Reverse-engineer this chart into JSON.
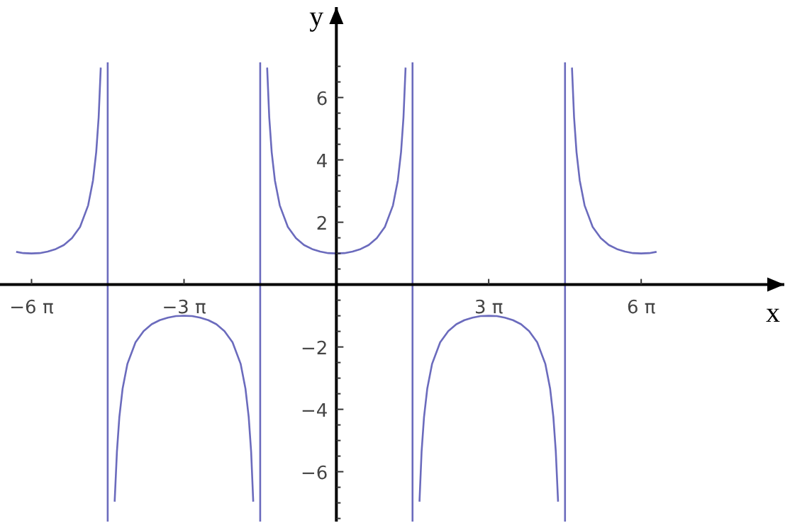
{
  "chart_data": {
    "type": "line",
    "xlabel": "x",
    "ylabel": "y",
    "xlim": [
      -20.8,
      27.7
    ],
    "ylim": [
      -7.6,
      8.9
    ],
    "xticks": [
      {
        "value": -18.85,
        "label": "−6 π"
      },
      {
        "value": -9.42,
        "label": "−3 π"
      },
      {
        "value": 9.42,
        "label": "3 π"
      },
      {
        "value": 18.85,
        "label": "6 π"
      }
    ],
    "yticks": [
      {
        "value": -7.5,
        "label": null
      },
      {
        "value": -7,
        "label": null
      },
      {
        "value": -6.5,
        "label": null
      },
      {
        "value": -6,
        "label": "−6"
      },
      {
        "value": -5.5,
        "label": null
      },
      {
        "value": -5,
        "label": null
      },
      {
        "value": -4.5,
        "label": null
      },
      {
        "value": -4,
        "label": "−4"
      },
      {
        "value": -3.5,
        "label": null
      },
      {
        "value": -3,
        "label": null
      },
      {
        "value": -2.5,
        "label": null
      },
      {
        "value": -2,
        "label": "−2"
      },
      {
        "value": -1.5,
        "label": null
      },
      {
        "value": -1,
        "label": null
      },
      {
        "value": -0.5,
        "label": null
      },
      {
        "value": 0.5,
        "label": null
      },
      {
        "value": 1,
        "label": null
      },
      {
        "value": 1.5,
        "label": null
      },
      {
        "value": 2,
        "label": "2"
      },
      {
        "value": 2.5,
        "label": null
      },
      {
        "value": 3,
        "label": null
      },
      {
        "value": 3.5,
        "label": null
      },
      {
        "value": 4,
        "label": "4"
      },
      {
        "value": 4.5,
        "label": null
      },
      {
        "value": 5,
        "label": null
      },
      {
        "value": 5.5,
        "label": null
      },
      {
        "value": 6,
        "label": "6"
      },
      {
        "value": 6.5,
        "label": null
      },
      {
        "value": 7,
        "label": null
      }
    ],
    "grid": false,
    "marker": "none",
    "line_style": "solid",
    "ref_lines": [
      {
        "axis": "x",
        "value": -14.14,
        "color": "#6b6bbd"
      },
      {
        "axis": "x",
        "value": -4.71,
        "color": "#6b6bbd"
      },
      {
        "axis": "x",
        "value": 4.71,
        "color": "#6b6bbd"
      },
      {
        "axis": "x",
        "value": 14.14,
        "color": "#6b6bbd"
      }
    ],
    "series": [
      {
        "color": "#6b6bbd",
        "x": [
          -19.8,
          -19.35,
          -18.85,
          -18.35,
          -17.85,
          -17.35,
          -16.85,
          -16.35,
          -15.85,
          -15.35,
          -15.05,
          -14.85,
          -14.7,
          -14.57,
          null,
          -13.71,
          -13.57,
          -13.42,
          -13.22,
          -12.92,
          -12.42,
          -11.92,
          -11.42,
          -10.92,
          -10.42,
          -9.92,
          -9.42,
          -8.92,
          -8.42,
          -7.92,
          -7.42,
          -6.92,
          -6.42,
          -5.92,
          -5.62,
          -5.42,
          -5.27,
          -5.14,
          null,
          -4.28,
          -4.15,
          -4,
          -3.8,
          -3.5,
          -3,
          -2.5,
          -2,
          -1.5,
          -1,
          -0.5,
          0,
          0.5,
          1,
          1.5,
          2,
          2.5,
          3,
          3.5,
          3.8,
          4,
          4.15,
          4.28,
          null,
          5.14,
          5.27,
          5.42,
          5.62,
          5.92,
          6.42,
          6.92,
          7.42,
          7.92,
          8.42,
          8.92,
          9.42,
          9.92,
          10.42,
          10.92,
          11.42,
          11.92,
          12.42,
          12.92,
          13.22,
          13.42,
          13.57,
          13.71,
          null,
          14.57,
          14.7,
          14.85,
          15.05,
          15.35,
          15.85,
          16.35,
          16.85,
          17.35,
          17.85,
          18.35,
          18.85,
          19.35,
          19.8
        ],
        "values": [
          1.05,
          1.01,
          1,
          1.01,
          1.06,
          1.14,
          1.27,
          1.49,
          1.85,
          2.54,
          3.34,
          4.25,
          5.36,
          6.96,
          null,
          -6.96,
          -5.36,
          -4.25,
          -3.34,
          -2.54,
          -1.85,
          -1.49,
          -1.27,
          -1.14,
          -1.06,
          -1.01,
          -1,
          -1.01,
          -1.06,
          -1.14,
          -1.27,
          -1.49,
          -1.85,
          -2.54,
          -3.34,
          -4.25,
          -5.36,
          -6.96,
          null,
          6.96,
          5.36,
          4.25,
          3.34,
          2.54,
          1.85,
          1.49,
          1.27,
          1.14,
          1.06,
          1.01,
          1,
          1.01,
          1.06,
          1.14,
          1.27,
          1.49,
          1.85,
          2.54,
          3.34,
          4.25,
          5.36,
          6.96,
          null,
          -6.96,
          -5.36,
          -4.25,
          -3.34,
          -2.54,
          -1.85,
          -1.49,
          -1.27,
          -1.14,
          -1.06,
          -1.01,
          -1,
          -1.01,
          -1.06,
          -1.14,
          -1.27,
          -1.49,
          -1.85,
          -2.54,
          -3.34,
          -4.25,
          -5.36,
          -6.96,
          null,
          6.96,
          5.36,
          4.25,
          3.34,
          2.54,
          1.85,
          1.49,
          1.27,
          1.14,
          1.06,
          1.01,
          1,
          1.01,
          1.05
        ]
      }
    ]
  }
}
